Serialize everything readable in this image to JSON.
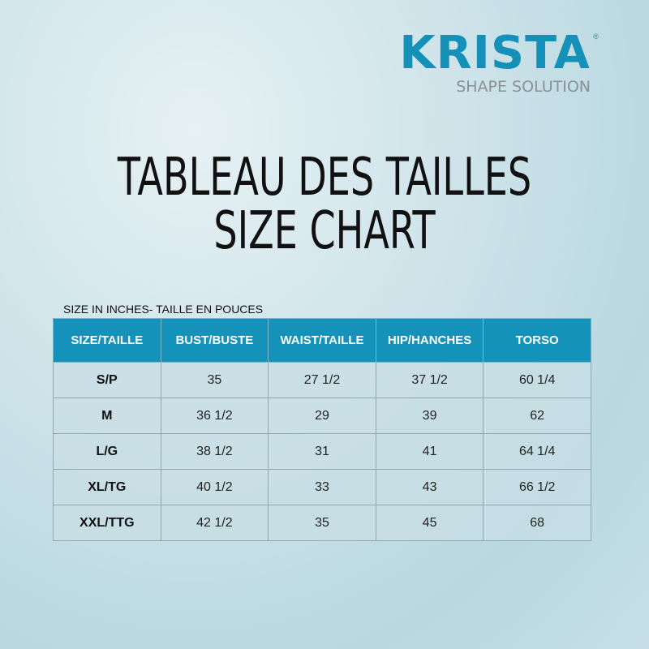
{
  "logo": {
    "brand": "KRISTA",
    "registered": "®",
    "tagline": "SHAPE SOLUTION",
    "color": "#1590b8"
  },
  "title": {
    "line1": "TABLEAU DES TAILLES",
    "line2": "SIZE CHART"
  },
  "caption": "SIZE IN INCHES- TAILLE EN POUCES",
  "table": {
    "header_color": "#1592b9",
    "columns": [
      "SIZE/TAILLE",
      "BUST/BUSTE",
      "WAIST/TAILLE",
      "HIP/HANCHES",
      "TORSO"
    ],
    "rows": [
      [
        "S/P",
        "35",
        "27 1/2",
        "37 1/2",
        "60 1/4"
      ],
      [
        "M",
        "36 1/2",
        "29",
        "39",
        "62"
      ],
      [
        "L/G",
        "38 1/2",
        "31",
        "41",
        "64 1/4"
      ],
      [
        "XL/TG",
        "40 1/2",
        "33",
        "43",
        "66 1/2"
      ],
      [
        "XXL/TTG",
        "42 1/2",
        "35",
        "45",
        "68"
      ]
    ]
  }
}
